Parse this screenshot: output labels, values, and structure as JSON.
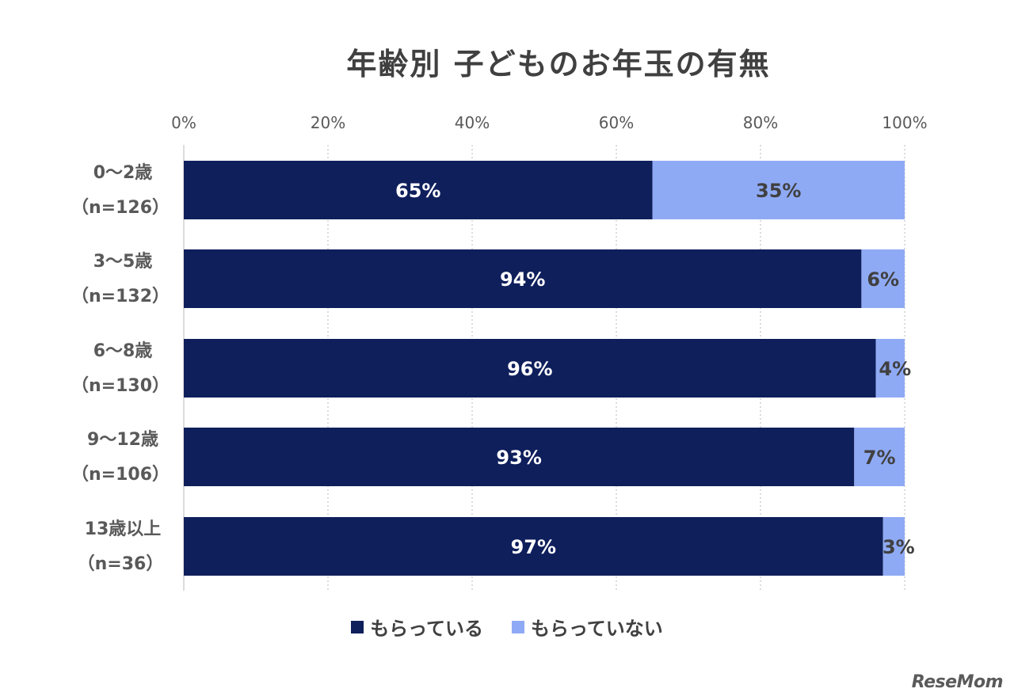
{
  "chart_data": {
    "type": "bar",
    "orientation": "horizontal",
    "stacked": true,
    "title": "年齢別 子どものお年玉の有無",
    "categories": [
      [
        "0〜2歳",
        "（n=126）"
      ],
      [
        "3〜5歳",
        "（n=132）"
      ],
      [
        "6〜8歳",
        "（n=130）"
      ],
      [
        "9〜12歳",
        "（n=106）"
      ],
      [
        "13歳以上",
        "（n=36）"
      ]
    ],
    "series": [
      {
        "name": "もらっている",
        "color": "#0f1f5c",
        "label_color": "#ffffff",
        "values": [
          65,
          94,
          96,
          93,
          97
        ]
      },
      {
        "name": "もらっていない",
        "color": "#8faaf5",
        "label_color": "#404040",
        "values": [
          35,
          6,
          4,
          7,
          3
        ]
      }
    ],
    "xlim": [
      0,
      100
    ],
    "xticks": [
      "0%",
      "20%",
      "40%",
      "60%",
      "80%",
      "100%"
    ],
    "value_suffix": "%",
    "grid": true,
    "legend_position": "bottom"
  },
  "logo_text": "ReseMom"
}
